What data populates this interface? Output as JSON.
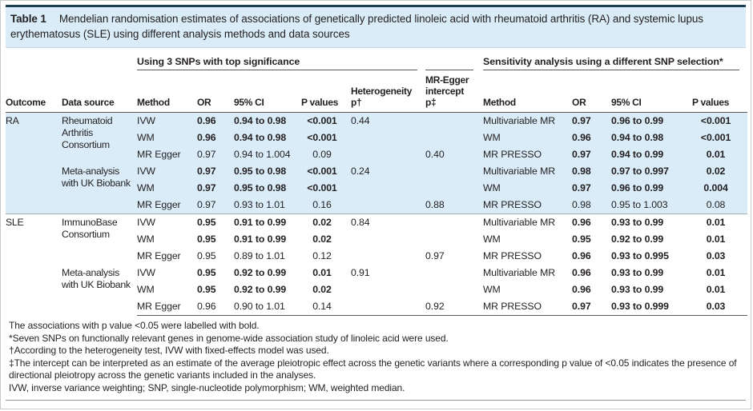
{
  "title": {
    "label": "Table 1",
    "text": "Mendelian randomisation estimates of associations of genetically predicted linoleic acid with rheumatoid arthritis (RA) and systemic lupus erythematosus (SLE) using different analysis methods and data sources"
  },
  "colors": {
    "highlight_blue": "#d9ecf8",
    "top_rule": "#1c4054",
    "rule_dark": "#58595b",
    "text": "#231f20"
  },
  "header": {
    "group1": "Using 3 SNPs with top significance",
    "group2": "Sensitivity analysis using a different SNP selection*",
    "columns": [
      "Outcome",
      "Data source",
      "Method",
      "OR",
      "95% CI",
      "P values",
      "Heterogeneity\np†",
      "MR-Egger\nintercept\np‡",
      "Method",
      "OR",
      "95% CI",
      "P values"
    ]
  },
  "body": {
    "blocks": [
      {
        "outcome": "RA",
        "highlight": true,
        "sources": [
          {
            "name": "Rheumatoid Arthritis Consortium",
            "rows": [
              {
                "m": "IVW",
                "or": "0.96",
                "ci": "0.94 to 0.98",
                "p": "<0.001",
                "bold": true,
                "het": "0.44",
                "m2": "Multivariable MR",
                "or2": "0.97",
                "ci2": "0.96 to 0.99",
                "p2": "<0.001",
                "bold2": true
              },
              {
                "m": "WM",
                "or": "0.96",
                "ci": "0.94 to 0.98",
                "p": "<0.001",
                "bold": true,
                "m2": "WM",
                "or2": "0.96",
                "ci2": "0.94 to 0.98",
                "p2": "<0.001",
                "bold2": true
              },
              {
                "m": "MR Egger",
                "or": "0.97",
                "ci": "0.94 to 1.004",
                "p": "0.09",
                "bold": false,
                "egger": "0.40",
                "m2": "MR PRESSO",
                "or2": "0.97",
                "ci2": "0.94 to 0.99",
                "p2": "0.01",
                "bold2": true
              }
            ]
          },
          {
            "name": "Meta-analysis with UK Biobank",
            "rows": [
              {
                "m": "IVW",
                "or": "0.97",
                "ci": "0.95 to 0.98",
                "p": "<0.001",
                "bold": true,
                "het": "0.24",
                "m2": "Multivariable MR",
                "or2": "0.98",
                "ci2": "0.97 to 0.997",
                "p2": "0.02",
                "bold2": true
              },
              {
                "m": "WM",
                "or": "0.97",
                "ci": "0.95 to 0.98",
                "p": "<0.001",
                "bold": true,
                "m2": "WM",
                "or2": "0.97",
                "ci2": "0.96 to 0.99",
                "p2": "0.004",
                "bold2": true
              },
              {
                "m": "MR Egger",
                "or": "0.97",
                "ci": "0.93 to 1.01",
                "p": "0.16",
                "bold": false,
                "egger": "0.88",
                "m2": "MR PRESSO",
                "or2": "0.98",
                "ci2": "0.95 to 1.003",
                "p2": "0.08",
                "bold2": false
              }
            ]
          }
        ]
      },
      {
        "outcome": "SLE",
        "highlight": false,
        "sources": [
          {
            "name": "ImmunoBase Consortium",
            "rows": [
              {
                "m": "IVW",
                "or": "0.95",
                "ci": "0.91 to 0.99",
                "p": "0.02",
                "bold": true,
                "het": "0.84",
                "m2": "Multivariable MR",
                "or2": "0.96",
                "ci2": "0.93 to 0.99",
                "p2": "0.01",
                "bold2": true
              },
              {
                "m": "WM",
                "or": "0.95",
                "ci": "0.91 to 0.99",
                "p": "0.02",
                "bold": true,
                "m2": "WM",
                "or2": "0.95",
                "ci2": "0.92 to 0.99",
                "p2": "0.01",
                "bold2": true
              },
              {
                "m": "MR Egger",
                "or": "0.95",
                "ci": "0.89 to 1.01",
                "p": "0.12",
                "bold": false,
                "egger": "0.97",
                "m2": "MR PRESSO",
                "or2": "0.96",
                "ci2": "0.93 to 0.995",
                "p2": "0.03",
                "bold2": true
              }
            ]
          },
          {
            "name": "Meta-analysis with UK Biobank",
            "rows": [
              {
                "m": "IVW",
                "or": "0.95",
                "ci": "0.92 to 0.99",
                "p": "0.01",
                "bold": true,
                "het": "0.91",
                "m2": "Multivariable MR",
                "or2": "0.96",
                "ci2": "0.93 to 0.99",
                "p2": "0.01",
                "bold2": true
              },
              {
                "m": "WM",
                "or": "0.95",
                "ci": "0.92 to 0.99",
                "p": "0.02",
                "bold": true,
                "m2": "WM",
                "or2": "0.96",
                "ci2": "0.93 to 0.99",
                "p2": "0.01",
                "bold2": true
              },
              {
                "m": "MR Egger",
                "or": "0.96",
                "ci": "0.90 to 1.01",
                "p": "0.14",
                "bold": false,
                "egger": "0.92",
                "m2": "MR PRESSO",
                "or2": "0.97",
                "ci2": "0.93 to 0.999",
                "p2": "0.03",
                "bold2": true
              }
            ]
          }
        ]
      }
    ]
  },
  "footnotes": [
    "The associations with p value <0.05 were labelled with bold.",
    "*Seven SNPs on functionally relevant genes in genome-wide association study of linoleic acid were used.",
    "†According to the heterogeneity test, IVW with fixed-effects model was used.",
    "‡The intercept can be interpreted as an estimate of the average pleiotropic effect across the genetic variants where a corresponding p value of <0.05 indicates the presence of directional pleiotropy across the genetic variants included in the analyses.",
    "IVW, inverse variance weighting; SNP, single-nucleotide polymorphism; WM, weighted median."
  ]
}
